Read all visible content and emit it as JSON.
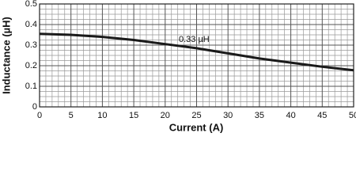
{
  "chart_data": {
    "type": "line",
    "x_label": "Current (A)",
    "y_label": "Inductance (µH)",
    "annotation": "0.33 µH",
    "x": [
      0,
      5,
      10,
      15,
      20,
      25,
      30,
      35,
      40,
      45,
      50
    ],
    "series": [
      {
        "color": "#1a1a1a",
        "values": [
          0.355,
          0.35,
          0.34,
          0.325,
          0.305,
          0.285,
          0.26,
          0.235,
          0.215,
          0.195,
          0.178
        ]
      }
    ],
    "xlim": [
      0,
      50
    ],
    "xticks": [
      0,
      5,
      10,
      15,
      20,
      25,
      30,
      35,
      40,
      45,
      50
    ],
    "ylim": [
      0,
      0.5
    ],
    "yticks": [
      0,
      0.1,
      0.2,
      0.3,
      0.4,
      0.5
    ],
    "grid": true
  }
}
